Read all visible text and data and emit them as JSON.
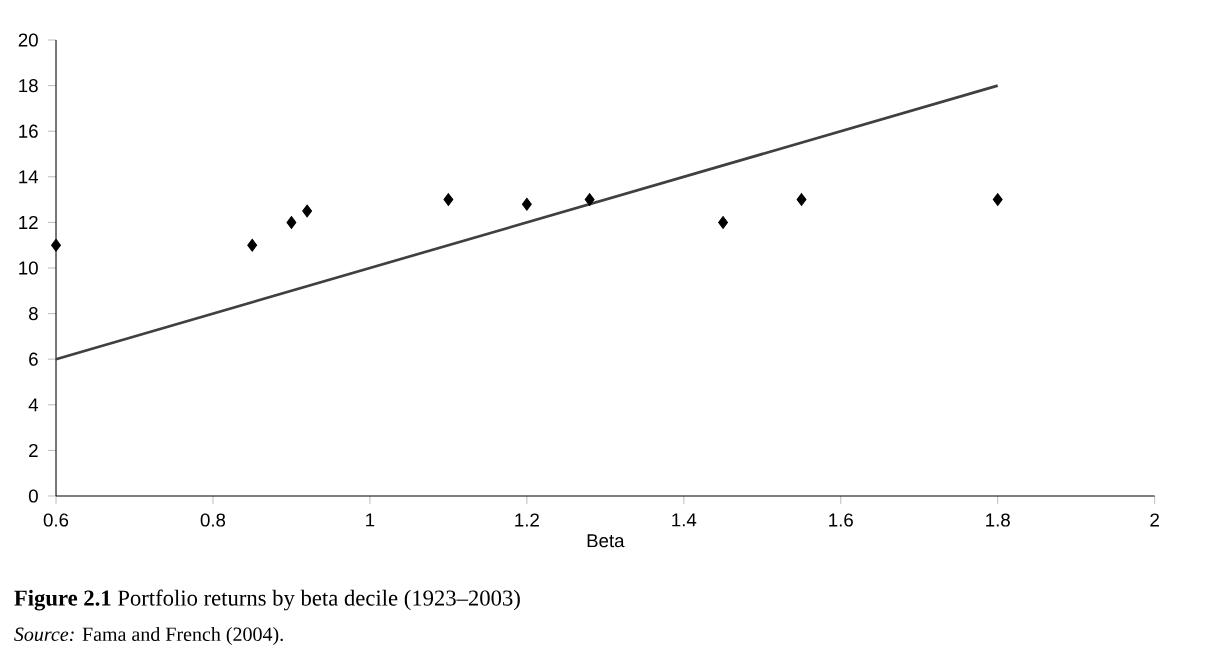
{
  "chart_data": {
    "type": "scatter",
    "title": "**Figure 2.1** Portfolio returns by beta decile (1923–2003)",
    "xlabel": "Beta",
    "annotations": [
      "*Source:* Fama and French (2004)."
    ],
    "series": [
      {
        "color": "#000000",
        "marker": "diamond",
        "x": [
          0.6,
          0.85,
          0.9,
          0.92,
          1.1,
          1.2,
          1.28,
          1.45,
          1.55,
          1.8
        ],
        "values": [
          11,
          11,
          12,
          12.5,
          13,
          12.8,
          13,
          12,
          13,
          13
        ]
      },
      {
        "type": "line",
        "color": "#404040",
        "marker": "none",
        "line_style": "solid",
        "x": [
          0.6,
          1.8
        ],
        "values": [
          6,
          18
        ]
      }
    ],
    "xlim": [
      0.6,
      2
    ],
    "xticks": [
      0.6,
      0.8,
      1,
      1.2,
      1.4,
      1.6,
      1.8,
      2
    ],
    "ylim": [
      0,
      20
    ],
    "yticks": [
      0,
      2,
      4,
      6,
      8,
      10,
      12,
      14,
      16,
      18,
      20
    ],
    "grid": false
  }
}
